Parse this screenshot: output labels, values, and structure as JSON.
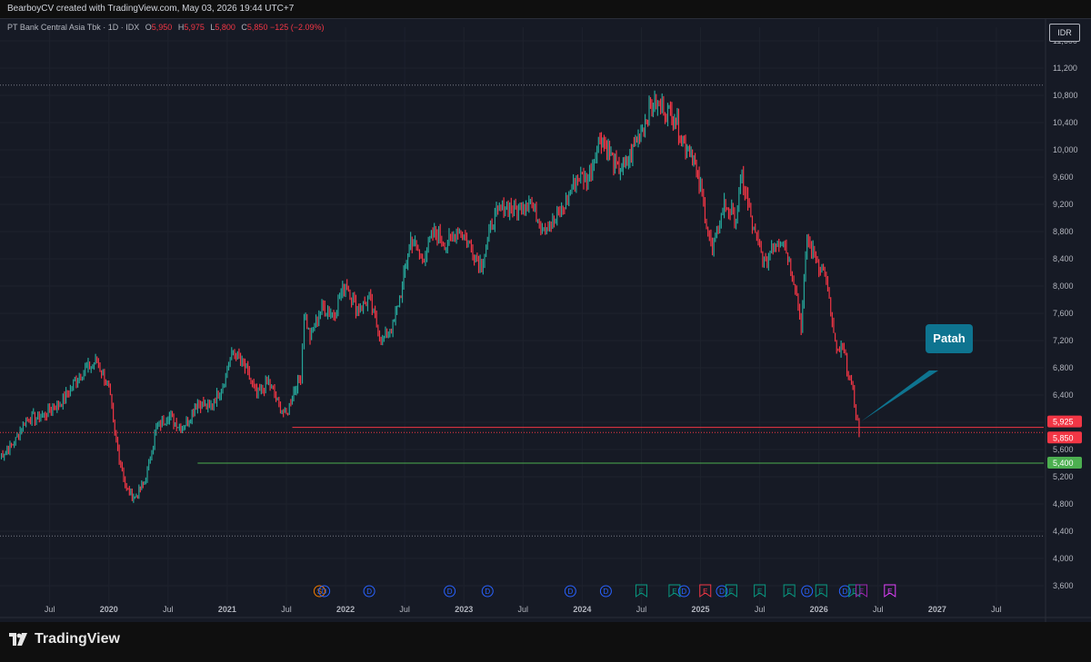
{
  "header": {
    "attribution": "BearboyCV created with TradingView.com, May 03, 2026 19:44 UTC+7"
  },
  "legend": {
    "symbol": "PT Bank Central Asia Tbk · 1D · IDX",
    "o_label": "O",
    "o_value": "5,950",
    "h_label": "H",
    "h_value": "5,975",
    "l_label": "L",
    "l_value": "5,800",
    "c_label": "C",
    "c_value": "5,850",
    "change": "−125 (−2.09%)"
  },
  "currency_label": "IDR",
  "callout_label": "Patah",
  "brand": {
    "name": "TradingView"
  },
  "colors": {
    "up": "#26a69a",
    "down": "#f23645",
    "support": "#4caf50",
    "resistance": "#f23645",
    "callout": "#0e7490"
  },
  "chart_data": {
    "type": "line",
    "title": "PT Bank Central Asia Tbk · 1D · IDX",
    "ylabel": "IDR",
    "ylim": [
      3400,
      11800
    ],
    "y_ticks": [
      "3,600",
      "4,000",
      "4,400",
      "4,800",
      "5,200",
      "5,600",
      "6,000",
      "6,400",
      "6,800",
      "7,200",
      "7,600",
      "8,000",
      "8,400",
      "8,800",
      "9,200",
      "9,600",
      "10,000",
      "10,400",
      "10,800",
      "11,200",
      "11,600"
    ],
    "x_ticks": [
      "Jul",
      "2020",
      "Jul",
      "2021",
      "Jul",
      "2022",
      "Jul",
      "2023",
      "Jul",
      "2024",
      "Jul",
      "2025",
      "Jul",
      "2026",
      "Jul",
      "2027",
      "Jul"
    ],
    "x_tick_pos": [
      2019.5,
      2020.0,
      2020.5,
      2021.0,
      2021.5,
      2022.0,
      2022.5,
      2023.0,
      2023.5,
      2024.0,
      2024.5,
      2025.0,
      2025.5,
      2026.0,
      2026.5,
      2027.0,
      2027.5
    ],
    "xlim": [
      2019.08,
      2027.9
    ],
    "series": [
      {
        "x": [
          2019.08,
          2019.2,
          2019.3,
          2019.45,
          2019.6,
          2019.75,
          2019.9,
          2020.0,
          2020.05,
          2020.15,
          2020.22,
          2020.3,
          2020.4,
          2020.5,
          2020.62,
          2020.75,
          2020.85,
          2020.95,
          2021.05,
          2021.15,
          2021.25,
          2021.35,
          2021.45,
          2021.5,
          2021.55,
          2021.62,
          2021.65,
          2021.7,
          2021.8,
          2021.9,
          2022.0,
          2022.1,
          2022.2,
          2022.3,
          2022.4,
          2022.48,
          2022.55,
          2022.65,
          2022.75,
          2022.85,
          2022.95,
          2023.05,
          2023.15,
          2023.25,
          2023.35,
          2023.45,
          2023.55,
          2023.65,
          2023.75,
          2023.85,
          2023.95,
          2024.05,
          2024.15,
          2024.22,
          2024.3,
          2024.38,
          2024.45,
          2024.52,
          2024.6,
          2024.7,
          2024.78,
          2024.85,
          2024.92,
          2025.0,
          2025.1,
          2025.2,
          2025.3,
          2025.35,
          2025.45,
          2025.55,
          2025.6,
          2025.7,
          2025.8,
          2025.85,
          2025.9,
          2026.0,
          2026.05,
          2026.1,
          2026.15,
          2026.2,
          2026.25,
          2026.3,
          2026.34
        ],
        "values": [
          5500,
          5700,
          6050,
          6100,
          6300,
          6700,
          6900,
          6500,
          5800,
          5000,
          4900,
          5100,
          5900,
          6100,
          5900,
          6300,
          6200,
          6500,
          7050,
          6800,
          6400,
          6600,
          6200,
          6100,
          6400,
          6700,
          7600,
          7250,
          7700,
          7600,
          8050,
          7650,
          7800,
          7200,
          7400,
          8000,
          8700,
          8400,
          8800,
          8600,
          8850,
          8600,
          8300,
          9000,
          9200,
          9100,
          9300,
          8900,
          8900,
          9200,
          9600,
          9600,
          10200,
          10000,
          9700,
          9800,
          10100,
          10400,
          10700,
          10600,
          10500,
          10100,
          10000,
          9400,
          8500,
          9200,
          9000,
          9600,
          8800,
          8300,
          8600,
          8700,
          8000,
          7400,
          8700,
          8300,
          8200,
          7600,
          7000,
          7100,
          6700,
          6300,
          5850
        ]
      }
    ],
    "levels": [
      {
        "value": 5925,
        "label": "5,925",
        "color": "#f23645"
      },
      {
        "value": 5850,
        "label": "5,850",
        "color": "#f23645"
      },
      {
        "value": 5400,
        "label": "5,400",
        "color": "#4caf50"
      }
    ],
    "range_high": 10950,
    "range_low": 4330,
    "events": [
      {
        "x": 2021.78,
        "label": "S",
        "color": "#f57c00"
      },
      {
        "x": 2021.82,
        "label": "D",
        "color": "#2962ff"
      },
      {
        "x": 2022.2,
        "label": "D",
        "color": "#2962ff"
      },
      {
        "x": 2022.88,
        "label": "D",
        "color": "#2962ff"
      },
      {
        "x": 2023.2,
        "label": "D",
        "color": "#2962ff"
      },
      {
        "x": 2023.9,
        "label": "D",
        "color": "#2962ff"
      },
      {
        "x": 2024.2,
        "label": "D",
        "color": "#2962ff"
      },
      {
        "x": 2024.5,
        "label": "E",
        "color": "#089981"
      },
      {
        "x": 2024.78,
        "label": "E",
        "color": "#089981"
      },
      {
        "x": 2024.86,
        "label": "D",
        "color": "#2962ff"
      },
      {
        "x": 2025.04,
        "label": "E",
        "color": "#f23645"
      },
      {
        "x": 2025.18,
        "label": "D",
        "color": "#2962ff"
      },
      {
        "x": 2025.26,
        "label": "E",
        "color": "#089981"
      },
      {
        "x": 2025.5,
        "label": "E",
        "color": "#089981"
      },
      {
        "x": 2025.75,
        "label": "E",
        "color": "#089981"
      },
      {
        "x": 2025.9,
        "label": "D",
        "color": "#2962ff"
      },
      {
        "x": 2026.02,
        "label": "E",
        "color": "#089981"
      },
      {
        "x": 2026.22,
        "label": "D",
        "color": "#2962ff"
      },
      {
        "x": 2026.3,
        "label": "E",
        "color": "#089981"
      },
      {
        "x": 2026.36,
        "label": "E",
        "color": "#9c27b0"
      },
      {
        "x": 2026.6,
        "label": "E",
        "color": "#e040fb"
      }
    ]
  }
}
